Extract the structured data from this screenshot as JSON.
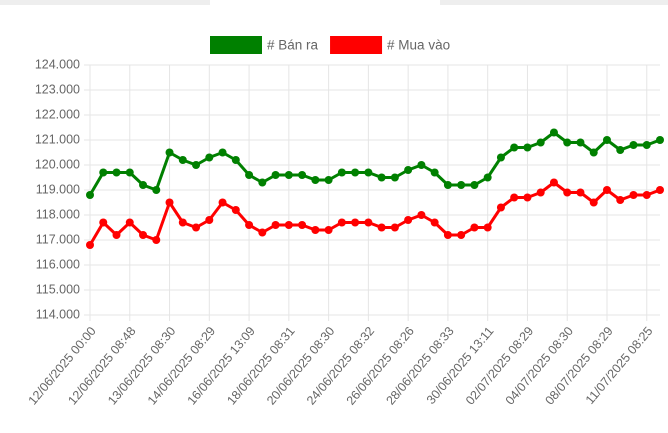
{
  "chart_data": {
    "type": "line",
    "categories": [
      "12/06/2025 00:00",
      null,
      null,
      "12/06/2025 08:48",
      null,
      null,
      "13/06/2025 08:30",
      null,
      null,
      "14/06/2025 08:29",
      null,
      null,
      "16/06/2025 13:09",
      null,
      null,
      "18/06/2025 08:31",
      null,
      null,
      "20/06/2025 08:30",
      null,
      null,
      "24/06/2025 08:32",
      null,
      null,
      "26/06/2025 08:26",
      null,
      null,
      "28/06/2025 08:33",
      null,
      null,
      "30/06/2025 13:11",
      null,
      null,
      "02/07/2025 08:29",
      null,
      null,
      "04/07/2025 08:30",
      null,
      null,
      "08/07/2025 08:29",
      null,
      null,
      "11/07/2025 08:25",
      null
    ],
    "series": [
      {
        "name": "# Bán ra",
        "color": "#008000",
        "values": [
          118800,
          119700,
          119700,
          119700,
          119200,
          119000,
          120500,
          120200,
          120000,
          120300,
          120500,
          120200,
          119600,
          119300,
          119600,
          119600,
          119600,
          119400,
          119400,
          119700,
          119700,
          119700,
          119500,
          119500,
          119800,
          120000,
          119700,
          119200,
          119200,
          119200,
          119500,
          120300,
          120700,
          120700,
          120900,
          121300,
          120900,
          120900,
          120500,
          121000,
          120600,
          120800,
          120800,
          121000
        ]
      },
      {
        "name": "# Mua vào",
        "color": "#ff0000",
        "values": [
          116800,
          117700,
          117200,
          117700,
          117200,
          117000,
          118500,
          117700,
          117500,
          117800,
          118500,
          118200,
          117600,
          117300,
          117600,
          117600,
          117600,
          117400,
          117400,
          117700,
          117700,
          117700,
          117500,
          117500,
          117800,
          118000,
          117700,
          117200,
          117200,
          117500,
          117500,
          118300,
          118700,
          118700,
          118900,
          119300,
          118900,
          118900,
          118500,
          119000,
          118600,
          118800,
          118800,
          119000
        ]
      }
    ],
    "ylim": [
      114000,
      124000
    ],
    "yticks": [
      {
        "value": 114000,
        "label": "114.000"
      },
      {
        "value": 115000,
        "label": "115.000"
      },
      {
        "value": 116000,
        "label": "116.000"
      },
      {
        "value": 117000,
        "label": "117.000"
      },
      {
        "value": 118000,
        "label": "118.000"
      },
      {
        "value": 119000,
        "label": "119.000"
      },
      {
        "value": 120000,
        "label": "120.000"
      },
      {
        "value": 121000,
        "label": "121.000"
      },
      {
        "value": 122000,
        "label": "122.000"
      },
      {
        "value": 123000,
        "label": "123.000"
      },
      {
        "value": 124000,
        "label": "124.000"
      }
    ],
    "grid": true,
    "legend": "top"
  }
}
